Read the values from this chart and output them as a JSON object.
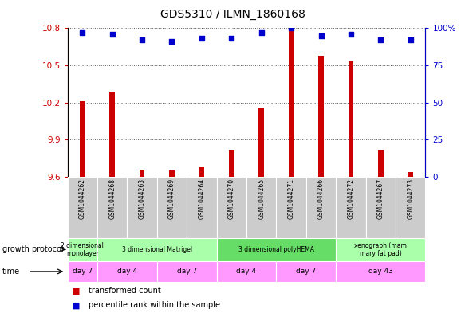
{
  "title": "GDS5310 / ILMN_1860168",
  "samples": [
    "GSM1044262",
    "GSM1044268",
    "GSM1044263",
    "GSM1044269",
    "GSM1044264",
    "GSM1044270",
    "GSM1044265",
    "GSM1044271",
    "GSM1044266",
    "GSM1044272",
    "GSM1044267",
    "GSM1044273"
  ],
  "bar_values": [
    10.21,
    10.29,
    9.66,
    9.65,
    9.68,
    9.82,
    10.15,
    10.8,
    10.58,
    10.53,
    9.82,
    9.64
  ],
  "dot_values": [
    97,
    96,
    92,
    91,
    93,
    93,
    97,
    100,
    95,
    96,
    92,
    92
  ],
  "ylim_left": [
    9.6,
    10.8
  ],
  "ylim_right": [
    0,
    100
  ],
  "yticks_left": [
    9.6,
    9.9,
    10.2,
    10.5,
    10.8
  ],
  "yticks_right": [
    0,
    25,
    50,
    75,
    100
  ],
  "ytick_labels_left": [
    "9.6",
    "9.9",
    "10.2",
    "10.5",
    "10.8"
  ],
  "ytick_labels_right": [
    "0",
    "25",
    "50",
    "75",
    "100%"
  ],
  "bar_color": "#cc0000",
  "dot_color": "#0000cc",
  "growth_protocol_groups": [
    {
      "label": "2 dimensional\nmonolayer",
      "start": 0,
      "end": 1,
      "color": "#aaffaa"
    },
    {
      "label": "3 dimensional Matrigel",
      "start": 1,
      "end": 5,
      "color": "#aaffaa"
    },
    {
      "label": "3 dimensional polyHEMA",
      "start": 5,
      "end": 9,
      "color": "#66dd66"
    },
    {
      "label": "xenograph (mam\nmary fat pad)",
      "start": 9,
      "end": 12,
      "color": "#aaffaa"
    }
  ],
  "time_groups": [
    {
      "label": "day 7",
      "start": 0,
      "end": 1
    },
    {
      "label": "day 4",
      "start": 1,
      "end": 3
    },
    {
      "label": "day 7",
      "start": 3,
      "end": 5
    },
    {
      "label": "day 4",
      "start": 5,
      "end": 7
    },
    {
      "label": "day 7",
      "start": 7,
      "end": 9
    },
    {
      "label": "day 43",
      "start": 9,
      "end": 12
    }
  ],
  "time_color": "#ff99ff",
  "growth_protocol_label": "growth protocol",
  "time_label": "time",
  "legend_bar_label": "transformed count",
  "legend_dot_label": "percentile rank within the sample",
  "dotted_line_color": "#555555",
  "axis_color_left": "#cc0000",
  "axis_color_right": "#0000cc",
  "bar_width": 0.18,
  "sample_bg": "#cccccc",
  "plot_bg": "#ffffff"
}
